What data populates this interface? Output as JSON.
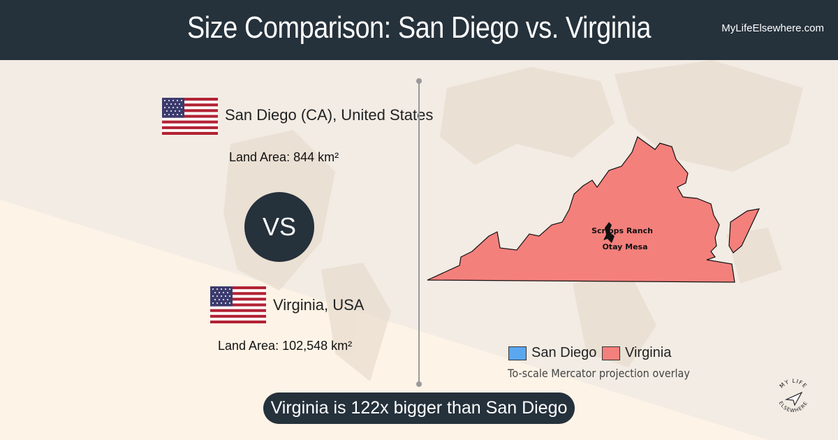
{
  "header": {
    "title": "Size Comparison: San Diego vs. Virginia",
    "site": "MyLifeElsewhere.com"
  },
  "place_a": {
    "name": "San Diego (CA), United States",
    "area_label": "Land Area:",
    "area_value": "844 km²",
    "flag": "usa-flag"
  },
  "place_b": {
    "name": "Virginia, USA",
    "area_label": "Land Area:",
    "area_value": "102,548 km²",
    "flag": "usa-flag"
  },
  "vs_label": "VS",
  "map": {
    "label_1": "Scripps Ranch",
    "label_2": "Otay Mesa"
  },
  "legend": {
    "a_label": "San Diego",
    "a_color": "#5aa7f0",
    "b_label": "Virginia",
    "b_color": "#f4807c",
    "caption": "To-scale Mercator projection overlay"
  },
  "result": "Virginia is 122x bigger than San Diego",
  "logo": {
    "text_top": "MY LIFE",
    "text_bottom": "ELSEWHERE"
  }
}
